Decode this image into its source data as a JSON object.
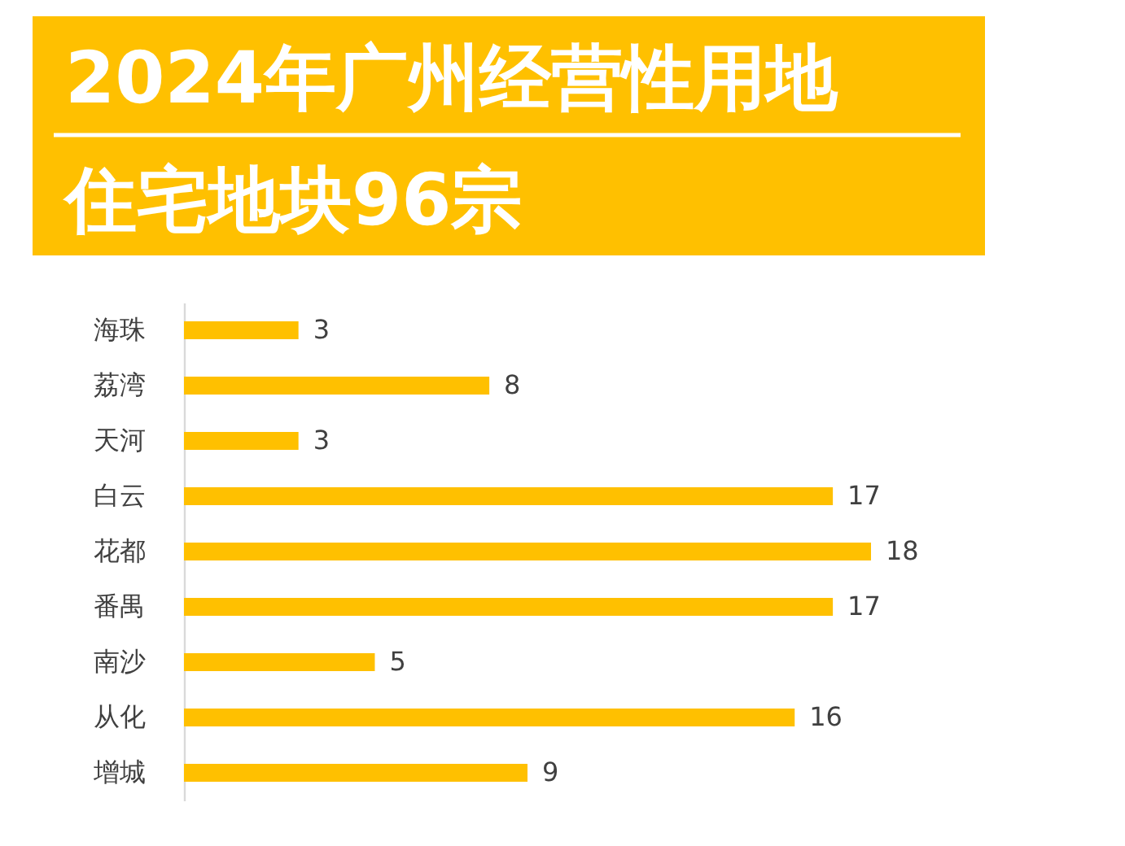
{
  "chart_data": {
    "type": "bar",
    "orientation": "horizontal",
    "title": "2024年广州经营性用地",
    "subtitle": "住宅地块96宗",
    "categories": [
      "海珠",
      "荔湾",
      "天河",
      "白云",
      "花都",
      "番禺",
      "南沙",
      "从化",
      "增城"
    ],
    "values": [
      3,
      8,
      3,
      17,
      18,
      17,
      5,
      16,
      9
    ],
    "color": "#ffc000",
    "data_labels": true,
    "tick_labels": "y"
  }
}
